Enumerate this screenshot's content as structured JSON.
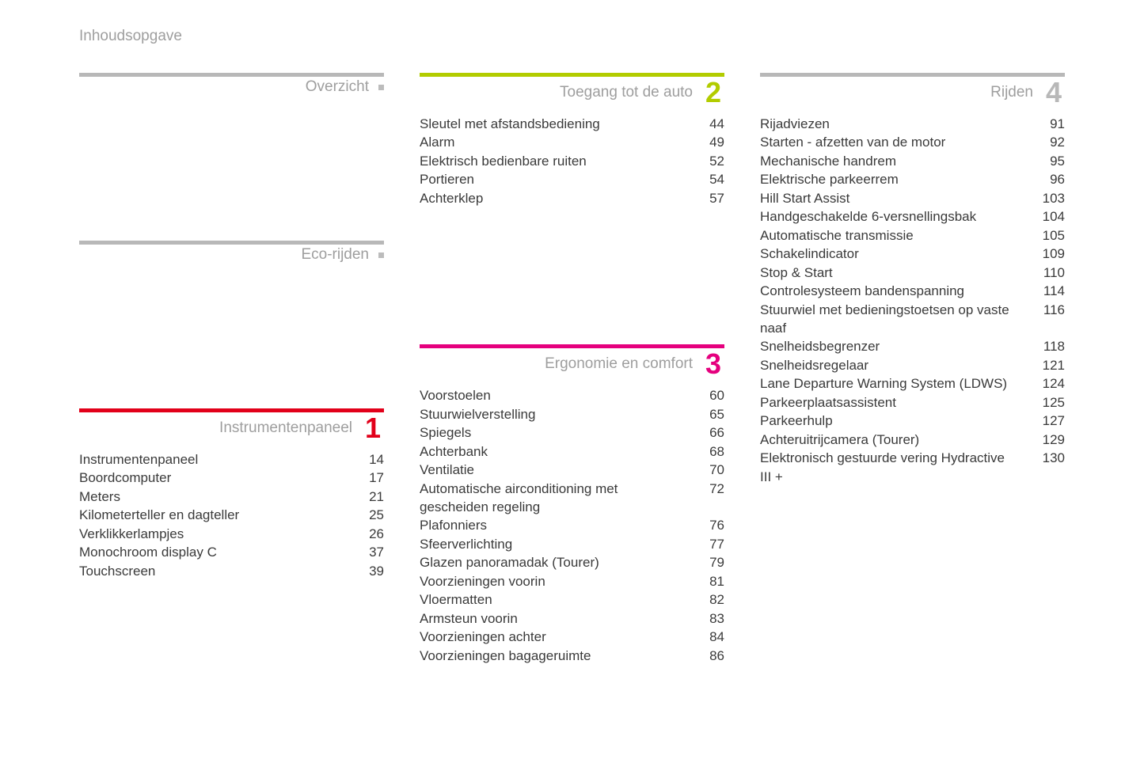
{
  "page_title": "Inhoudsopgave",
  "colors": {
    "gray_rule": "#b8b8b8",
    "gray_text": "#9e9e9e",
    "red": "#e2001a",
    "green": "#b2cc00",
    "magenta": "#e5007e",
    "gray_number": "#b8b8b8",
    "body_text": "#3a3a3a"
  },
  "columns": [
    {
      "sections": [
        {
          "title": "Overzicht",
          "rule_color": "#b8b8b8",
          "number": null,
          "dot": true,
          "entries": [],
          "spacer_after": true
        },
        {
          "title": "Eco-rijden",
          "rule_color": "#b8b8b8",
          "number": null,
          "dot": true,
          "entries": [],
          "spacer_after": true
        },
        {
          "title": "Instrumentenpaneel",
          "rule_color": "#e2001a",
          "number": "1",
          "number_color": "#e2001a",
          "dot": false,
          "entries": [
            {
              "label": "Instrumentenpaneel",
              "page": "14"
            },
            {
              "label": "Boordcomputer",
              "page": "17"
            },
            {
              "label": "Meters",
              "page": "21"
            },
            {
              "label": "Kilometerteller en dagteller",
              "page": "25"
            },
            {
              "label": "Verklikkerlampjes",
              "page": "26"
            },
            {
              "label": "Monochroom display C",
              "page": "37"
            },
            {
              "label": "Touchscreen",
              "page": "39"
            }
          ]
        }
      ]
    },
    {
      "sections": [
        {
          "title": "Toegang tot de auto",
          "rule_color": "#b2cc00",
          "number": "2",
          "number_color": "#b2cc00",
          "dot": false,
          "entries": [
            {
              "label": "Sleutel met afstandsbediening",
              "page": "44"
            },
            {
              "label": "Alarm",
              "page": "49"
            },
            {
              "label": "Elektrisch bedienbare ruiten",
              "page": "52"
            },
            {
              "label": "Portieren",
              "page": "54"
            },
            {
              "label": "Achterklep",
              "page": "57"
            }
          ],
          "spacer_after": true
        },
        {
          "title": "Ergonomie en comfort",
          "rule_color": "#e5007e",
          "number": "3",
          "number_color": "#e5007e",
          "dot": false,
          "entries": [
            {
              "label": "Voorstoelen",
              "page": "60"
            },
            {
              "label": "Stuurwielverstelling",
              "page": "65"
            },
            {
              "label": "Spiegels",
              "page": "66"
            },
            {
              "label": "Achterbank",
              "page": "68"
            },
            {
              "label": "Ventilatie",
              "page": "70"
            },
            {
              "label": "Automatische airconditioning met gescheiden regeling",
              "page": "72"
            },
            {
              "label": "Plafonniers",
              "page": "76"
            },
            {
              "label": "Sfeerverlichting",
              "page": "77"
            },
            {
              "label": "Glazen panoramadak (Tourer)",
              "page": "79"
            },
            {
              "label": "Voorzieningen voorin",
              "page": "81"
            },
            {
              "label": "Vloermatten",
              "page": "82"
            },
            {
              "label": "Armsteun voorin",
              "page": "83"
            },
            {
              "label": "Voorzieningen achter",
              "page": "84"
            },
            {
              "label": "Voorzieningen bagageruimte",
              "page": "86"
            }
          ]
        }
      ]
    },
    {
      "sections": [
        {
          "title": "Rijden",
          "rule_color": "#b8b8b8",
          "number": "4",
          "number_color": "#b8b8b8",
          "dot": false,
          "entries": [
            {
              "label": "Rijadviezen",
              "page": "91"
            },
            {
              "label": "Starten - afzetten van de motor",
              "page": "92"
            },
            {
              "label": "Mechanische handrem",
              "page": "95"
            },
            {
              "label": "Elektrische parkeerrem",
              "page": "96"
            },
            {
              "label": "Hill Start Assist",
              "page": "103"
            },
            {
              "label": "Handgeschakelde 6-versnellingsbak",
              "page": "104"
            },
            {
              "label": "Automatische transmissie",
              "page": "105"
            },
            {
              "label": "Schakelindicator",
              "page": "109"
            },
            {
              "label": "Stop & Start",
              "page": "110"
            },
            {
              "label": "Controlesysteem bandenspanning",
              "page": "114"
            },
            {
              "label": "Stuurwiel met bedieningstoetsen op vaste naaf",
              "page": "116"
            },
            {
              "label": "Snelheidsbegrenzer",
              "page": "118"
            },
            {
              "label": "Snelheidsregelaar",
              "page": "121"
            },
            {
              "label": "Lane Departure Warning System (LDWS)",
              "page": "124"
            },
            {
              "label": "Parkeerplaatsassistent",
              "page": "125"
            },
            {
              "label": "Parkeerhulp",
              "page": "127"
            },
            {
              "label": "Achteruitrijcamera (Tourer)",
              "page": "129"
            },
            {
              "label": "Elektronisch gestuurde vering Hydractive III +",
              "page": "130"
            }
          ]
        }
      ]
    }
  ]
}
